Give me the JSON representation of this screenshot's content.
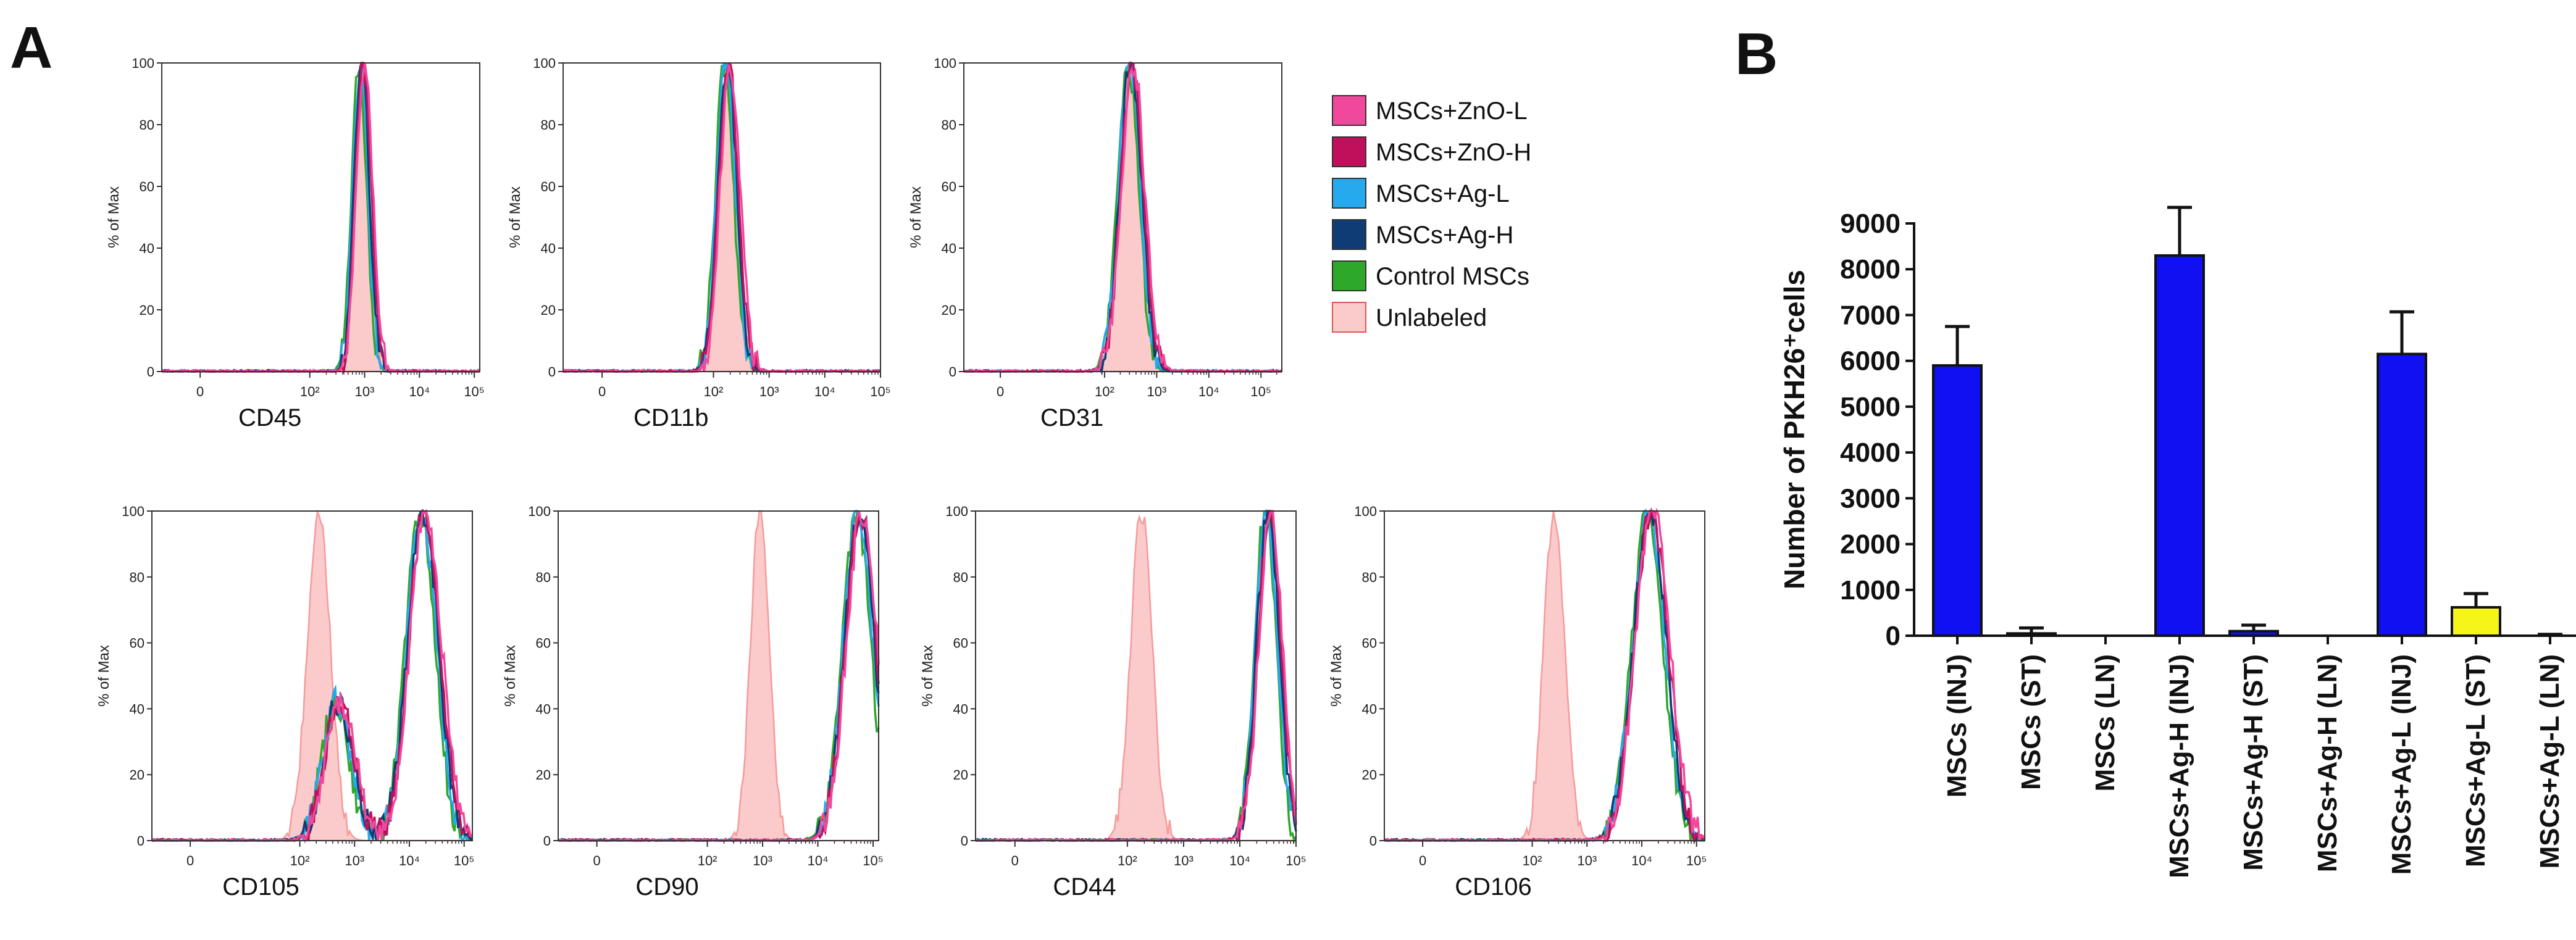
{
  "panels": {
    "a": "A",
    "b": "B"
  },
  "colors": {
    "zno_l": "#f0489b",
    "zno_h": "#c0105c",
    "ag_l": "#27a9ee",
    "ag_h": "#0f3c74",
    "control": "#2ea82a",
    "unlabeled_fill": "#fbcaca",
    "unlabeled_line": "#f59b9b",
    "bar_blue": "#1010f0",
    "bar_yellow": "#f5f51a"
  },
  "chart_data": [
    {
      "type": "histogram",
      "panel": "A",
      "y_axis_label": "% of Max",
      "y_ticks": [
        "0",
        "20",
        "40",
        "60",
        "80",
        "100"
      ],
      "x_ticks": [
        "0",
        "10²",
        "10³",
        "10⁴",
        "10⁵"
      ],
      "legend": [
        {
          "key": "zno_l",
          "label": "MSCs+ZnO-L"
        },
        {
          "key": "zno_h",
          "label": "MSCs+ZnO-H"
        },
        {
          "key": "ag_l",
          "label": "MSCs+Ag-L"
        },
        {
          "key": "ag_h",
          "label": "MSCs+Ag-H"
        },
        {
          "key": "control",
          "label": "Control MSCs"
        },
        {
          "key": "unlabeled",
          "label": "Unlabeled"
        }
      ],
      "markers": [
        {
          "marker": "CD45",
          "x_max": 5.1,
          "unlabeled": [
            {
              "mu": 2.95,
              "s": 0.13,
              "w": 1
            }
          ],
          "stained": [
            {
              "mu": 2.95,
              "s": 0.14,
              "w": 1
            }
          ]
        },
        {
          "marker": "CD11b",
          "x_max": 5.0,
          "unlabeled": [
            {
              "mu": 2.25,
              "s": 0.16,
              "w": 1
            }
          ],
          "stained": [
            {
              "mu": 2.25,
              "s": 0.17,
              "w": 1
            }
          ]
        },
        {
          "marker": "CD31",
          "x_max": 5.4,
          "unlabeled": [
            {
              "mu": 2.5,
              "s": 0.2,
              "w": 1
            }
          ],
          "stained": [
            {
              "mu": 2.5,
              "s": 0.21,
              "w": 1
            }
          ]
        },
        {
          "marker": "CD105",
          "x_max": 5.15,
          "unlabeled": [
            {
              "mu": 2.35,
              "s": 0.21,
              "w": 1
            }
          ],
          "stained": [
            {
              "mu": 2.7,
              "s": 0.26,
              "w": 0.4
            },
            {
              "mu": 4.25,
              "s": 0.28,
              "w": 0.95
            }
          ]
        },
        {
          "marker": "CD90",
          "x_max": 5.1,
          "unlabeled": [
            {
              "mu": 2.95,
              "s": 0.17,
              "w": 1
            }
          ],
          "stained": [
            {
              "mu": 4.75,
              "s": 0.27,
              "w": 1
            }
          ]
        },
        {
          "marker": "CD44",
          "x_max": 5.0,
          "unlabeled": [
            {
              "mu": 2.25,
              "s": 0.19,
              "w": 1
            }
          ],
          "stained": [
            {
              "mu": 4.5,
              "s": 0.2,
              "w": 1
            }
          ]
        },
        {
          "marker": "CD106",
          "x_max": 5.15,
          "unlabeled": [
            {
              "mu": 2.4,
              "s": 0.19,
              "w": 1
            }
          ],
          "stained": [
            {
              "mu": 4.15,
              "s": 0.3,
              "w": 1
            }
          ]
        }
      ]
    },
    {
      "type": "bar",
      "panel": "B",
      "ylabel": "Number of PKH26⁺cells",
      "ylim": [
        0,
        9000
      ],
      "y_ticks": [
        0,
        1000,
        2000,
        3000,
        4000,
        5000,
        6000,
        7000,
        8000,
        9000
      ],
      "categories": [
        "MSCs (INJ)",
        "MSCs (ST)",
        "MSCs (LN)",
        "MSCs+Ag-H (INJ)",
        "MSCs+Ag-H (ST)",
        "MSCs+Ag-H (LN)",
        "MSCs+Ag-L (INJ)",
        "MSCs+Ag-L (ST)",
        "MSCs+Ag-L (LN)"
      ],
      "values": [
        5900,
        50,
        0,
        8300,
        100,
        0,
        6150,
        620,
        0
      ],
      "errors": [
        850,
        120,
        0,
        1050,
        130,
        0,
        920,
        300,
        30
      ],
      "bar_colors": [
        "bar_blue",
        "bar_blue",
        "bar_blue",
        "bar_blue",
        "bar_blue",
        "bar_blue",
        "bar_blue",
        "bar_yellow",
        "bar_blue"
      ]
    }
  ]
}
